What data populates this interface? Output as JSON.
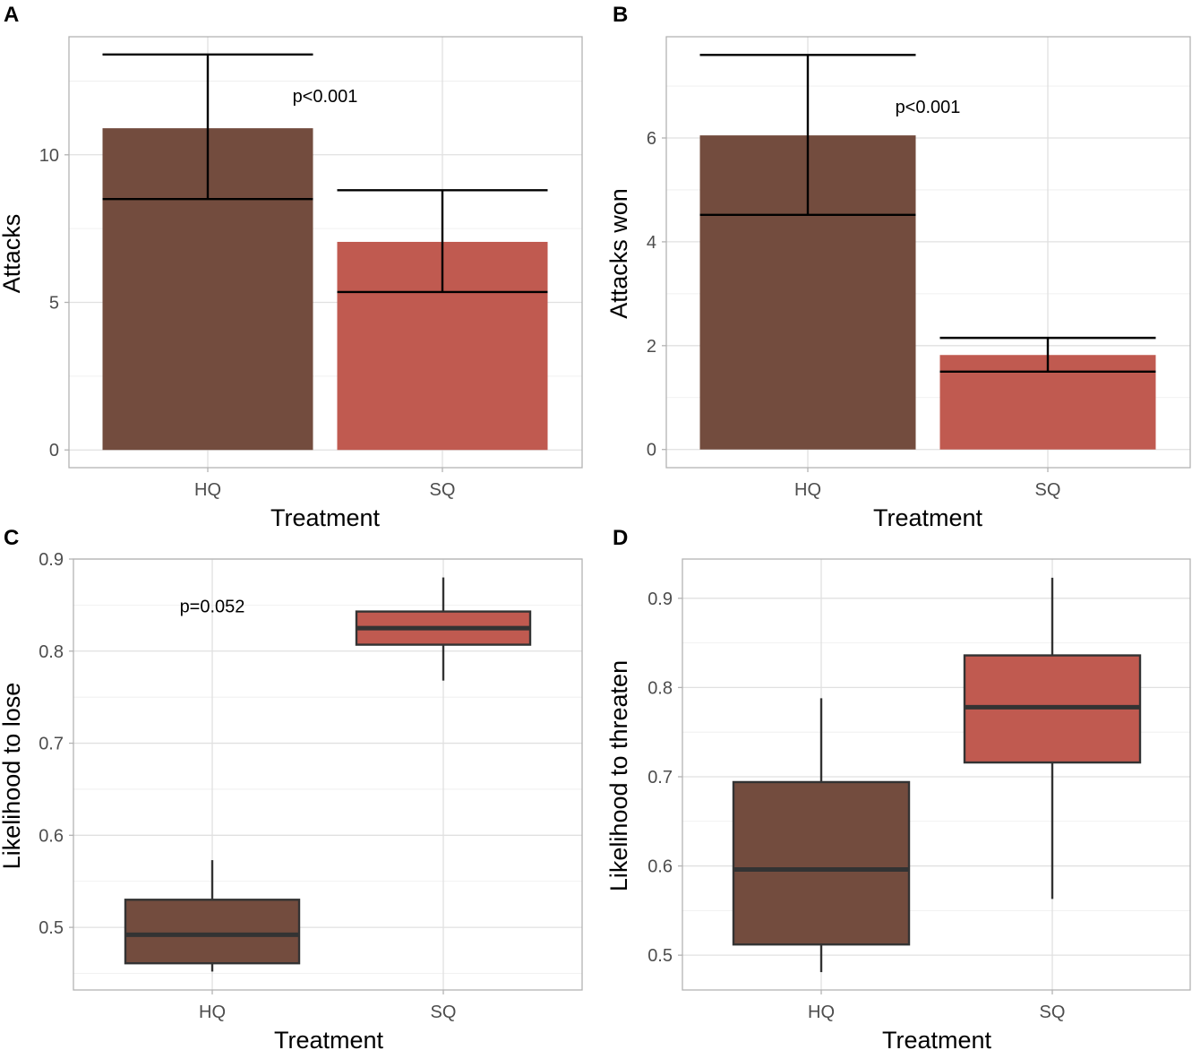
{
  "colors": {
    "HQ": "#734c3e",
    "SQ": "#c05a50",
    "line": "#000000",
    "box_line": "#333333"
  },
  "chart_data": [
    {
      "panel": "A",
      "type": "bar",
      "categories": [
        "HQ",
        "SQ"
      ],
      "values": [
        10.9,
        7.05
      ],
      "error_low": [
        8.5,
        5.35
      ],
      "error_high": [
        13.4,
        8.8
      ],
      "xlabel": "Treatment",
      "ylabel": "Attacks",
      "ylim": [
        -0.6,
        14.0
      ],
      "yticks": [
        0,
        5,
        10
      ],
      "ytick_labels": [
        "0",
        "5",
        "10"
      ],
      "minor_ticks": [
        2.5,
        7.5,
        12.5
      ],
      "annotation": {
        "text": "p<0.001",
        "x": 1.5,
        "y": 12.0
      },
      "grid": true
    },
    {
      "panel": "B",
      "type": "bar",
      "categories": [
        "HQ",
        "SQ"
      ],
      "values": [
        6.05,
        1.82
      ],
      "error_low": [
        4.52,
        1.5
      ],
      "error_high": [
        7.6,
        2.15
      ],
      "xlabel": "Treatment",
      "ylabel": "Attacks won",
      "ylim": [
        -0.35,
        7.95
      ],
      "yticks": [
        0,
        2,
        4,
        6
      ],
      "ytick_labels": [
        "0",
        "2",
        "4",
        "6"
      ],
      "minor_ticks": [
        1,
        3,
        5,
        7
      ],
      "annotation": {
        "text": "p<0.001",
        "x": 1.5,
        "y": 6.6
      },
      "grid": true
    },
    {
      "panel": "C",
      "type": "box",
      "categories": [
        "HQ",
        "SQ"
      ],
      "boxes": [
        {
          "min": 0.452,
          "q1": 0.461,
          "median": 0.492,
          "q3": 0.53,
          "max": 0.573
        },
        {
          "min": 0.768,
          "q1": 0.807,
          "median": 0.825,
          "q3": 0.843,
          "max": 0.88
        }
      ],
      "xlabel": "Treatment",
      "ylabel": "Likelihood to lose",
      "ylim": [
        0.432,
        0.9
      ],
      "yticks": [
        0.5,
        0.6,
        0.7,
        0.8,
        0.9
      ],
      "ytick_labels": [
        "0.5",
        "0.6",
        "0.7",
        "0.8",
        "0.9"
      ],
      "minor_ticks": [
        0.45,
        0.55,
        0.65,
        0.75,
        0.85
      ],
      "annotation": {
        "text": "p=0.052",
        "x": 1.0,
        "y": 0.849
      },
      "grid": true
    },
    {
      "panel": "D",
      "type": "box",
      "categories": [
        "HQ",
        "SQ"
      ],
      "boxes": [
        {
          "min": 0.481,
          "q1": 0.512,
          "median": 0.596,
          "q3": 0.694,
          "max": 0.788
        },
        {
          "min": 0.563,
          "q1": 0.716,
          "median": 0.778,
          "q3": 0.836,
          "max": 0.923
        }
      ],
      "xlabel": "Treatment",
      "ylabel": "Likelihood to threaten",
      "ylim": [
        0.461,
        0.944
      ],
      "yticks": [
        0.5,
        0.6,
        0.7,
        0.8,
        0.9
      ],
      "ytick_labels": [
        "0.5",
        "0.6",
        "0.7",
        "0.8",
        "0.9"
      ],
      "minor_ticks": [
        0.55,
        0.65,
        0.75,
        0.85
      ],
      "annotation": null,
      "grid": true
    }
  ]
}
